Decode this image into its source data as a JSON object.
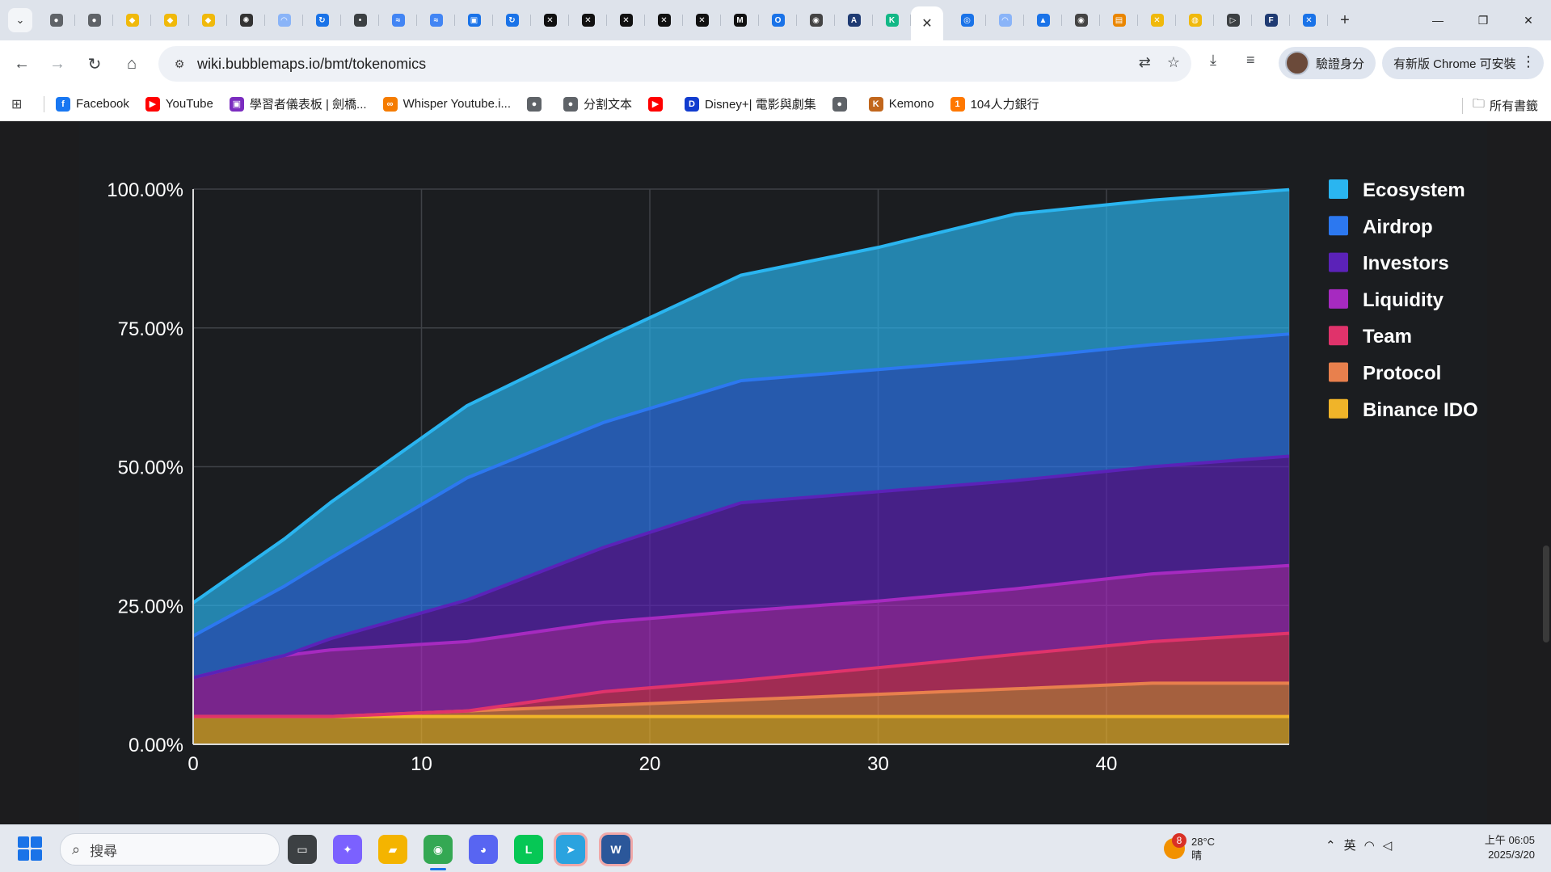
{
  "browser": {
    "tab_icons": [
      {
        "name": "globe-icon",
        "color": "#5f6368",
        "glyph": "●"
      },
      {
        "name": "globe-icon",
        "color": "#5f6368",
        "glyph": "●"
      },
      {
        "name": "binance-icon",
        "color": "#f0b90b",
        "glyph": "◆"
      },
      {
        "name": "binance-icon",
        "color": "#f0b90b",
        "glyph": "◆"
      },
      {
        "name": "binance-icon",
        "color": "#f0b90b",
        "glyph": "◆"
      },
      {
        "name": "openai-icon",
        "color": "#333333",
        "glyph": "✺"
      },
      {
        "name": "rainbow-icon",
        "color": "#8ab4f8",
        "glyph": "◠"
      },
      {
        "name": "refresh-logo-icon",
        "color": "#1a73e8",
        "glyph": "↻"
      },
      {
        "name": "dots-icon",
        "color": "#3c4043",
        "glyph": "•"
      },
      {
        "name": "wave-icon",
        "color": "#4285f4",
        "glyph": "≈"
      },
      {
        "name": "wave-icon",
        "color": "#4285f4",
        "glyph": "≈"
      },
      {
        "name": "square-logo-icon",
        "color": "#1a73e8",
        "glyph": "▣"
      },
      {
        "name": "refresh-logo-icon",
        "color": "#1a73e8",
        "glyph": "↻"
      },
      {
        "name": "x-logo-icon",
        "color": "#111111",
        "glyph": "✕"
      },
      {
        "name": "cross-logo-icon",
        "color": "#111111",
        "glyph": "✕"
      },
      {
        "name": "cross-logo-icon",
        "color": "#111111",
        "glyph": "✕"
      },
      {
        "name": "cross-logo-icon",
        "color": "#111111",
        "glyph": "✕"
      },
      {
        "name": "cross-logo-icon",
        "color": "#111111",
        "glyph": "✕"
      },
      {
        "name": "m-logo-icon",
        "color": "#111111",
        "glyph": "M"
      },
      {
        "name": "o-logo-icon",
        "color": "#1a73e8",
        "glyph": "O"
      },
      {
        "name": "panda-icon",
        "color": "#444444",
        "glyph": "◉"
      },
      {
        "name": "a-logo-icon",
        "color": "#1f3b73",
        "glyph": "A"
      },
      {
        "name": "k-logo-icon",
        "color": "#12b886",
        "glyph": "K"
      }
    ],
    "active_tab_close": "✕",
    "tab_icons_right": [
      {
        "name": "ai-logo-icon",
        "color": "#1a73e8",
        "glyph": "◎"
      },
      {
        "name": "rainbow-icon",
        "color": "#8ab4f8",
        "glyph": "◠"
      },
      {
        "name": "cloud-icon",
        "color": "#1a73e8",
        "glyph": "▲"
      },
      {
        "name": "panda-icon",
        "color": "#444444",
        "glyph": "◉"
      },
      {
        "name": "bookmark-logo-icon",
        "color": "#ea8600",
        "glyph": "▤"
      },
      {
        "name": "x-yellow-icon",
        "color": "#f0b90b",
        "glyph": "✕"
      },
      {
        "name": "coin-icon",
        "color": "#f0b90b",
        "glyph": "◍"
      },
      {
        "name": "play-icon",
        "color": "#3c4043",
        "glyph": "▷"
      },
      {
        "name": "f-logo-icon",
        "color": "#1f3b73",
        "glyph": "F"
      },
      {
        "name": "x-box-icon",
        "color": "#1a73e8",
        "glyph": "✕"
      }
    ],
    "url": "wiki.bubblemaps.io/bmt/tokenomics",
    "profile_label": "驗證身分",
    "update_label": "有新版 Chrome 可安裝",
    "bookmarks": [
      {
        "label": "Facebook",
        "color": "#1877f2",
        "glyph": "f"
      },
      {
        "label": "YouTube",
        "color": "#ff0000",
        "glyph": "▶"
      },
      {
        "label": "學習者儀表板 | 劍橋...",
        "color": "#7b2cbf",
        "glyph": "▣"
      },
      {
        "label": "Whisper Youtube.i...",
        "color": "#f57c00",
        "glyph": "∞"
      },
      {
        "label": "",
        "color": "#5f6368",
        "glyph": "●"
      },
      {
        "label": "分割文本",
        "color": "#5f6368",
        "glyph": "●"
      },
      {
        "label": "",
        "color": "#ff0000",
        "glyph": "▶"
      },
      {
        "label": "Disney+| 電影與劇集",
        "color": "#113ccf",
        "glyph": "D"
      },
      {
        "label": "",
        "color": "#5f6368",
        "glyph": "●"
      },
      {
        "label": "Kemono",
        "color": "#c1661c",
        "glyph": "K"
      },
      {
        "label": "104人力銀行",
        "color": "#ff7800",
        "glyph": "1"
      }
    ],
    "all_bookmarks_label": "所有書籤"
  },
  "chart_data": {
    "type": "area",
    "stacked": true,
    "title": "",
    "xlabel": "",
    "ylabel": "",
    "xlim": [
      0,
      48
    ],
    "ylim": [
      0,
      100
    ],
    "x_ticks": [
      "0",
      "10",
      "20",
      "30",
      "40"
    ],
    "y_ticks": [
      "0.00%",
      "25.00%",
      "50.00%",
      "75.00%",
      "100.00%"
    ],
    "grid": true,
    "legend_position": "right",
    "x": [
      0,
      4,
      6,
      12,
      18,
      24,
      30,
      36,
      42,
      48
    ],
    "series": [
      {
        "name": "Binance IDO",
        "color": "#f0b429",
        "values": [
          5,
          5,
          5,
          5,
          5,
          5,
          5,
          5,
          5,
          5
        ]
      },
      {
        "name": "Protocol",
        "color": "#e8804d",
        "values": [
          0,
          0,
          0,
          1,
          2,
          3,
          4,
          5,
          6,
          6
        ]
      },
      {
        "name": "Team",
        "color": "#e0336b",
        "values": [
          0,
          0,
          0,
          0,
          2.5,
          3.5,
          4.8,
          6.2,
          7.5,
          9
        ]
      },
      {
        "name": "Liquidity",
        "color": "#a62ac0",
        "values": [
          7,
          11,
          12,
          12.5,
          12.5,
          12.5,
          12,
          11.8,
          12.2,
          12.2
        ]
      },
      {
        "name": "Investors",
        "color": "#5b22b8",
        "values": [
          0,
          0,
          2,
          7.5,
          13.5,
          19.5,
          19.7,
          19.5,
          19.3,
          19.7
        ]
      },
      {
        "name": "Airdrop",
        "color": "#2c78f0",
        "values": [
          7.5,
          12.5,
          14.5,
          22,
          22.5,
          22,
          22,
          22,
          22,
          22
        ]
      },
      {
        "name": "Ecosystem",
        "color": "#2ab5f0",
        "values": [
          6,
          8.5,
          10,
          13,
          15,
          19,
          22,
          26,
          26,
          26
        ]
      }
    ]
  },
  "taskbar": {
    "search_placeholder": "搜尋",
    "weather_badge": "8",
    "weather_temp": "28°C",
    "weather_desc": "晴",
    "ime_label": "英",
    "clock_time": "上午 06:05",
    "clock_date": "2025/3/20"
  }
}
